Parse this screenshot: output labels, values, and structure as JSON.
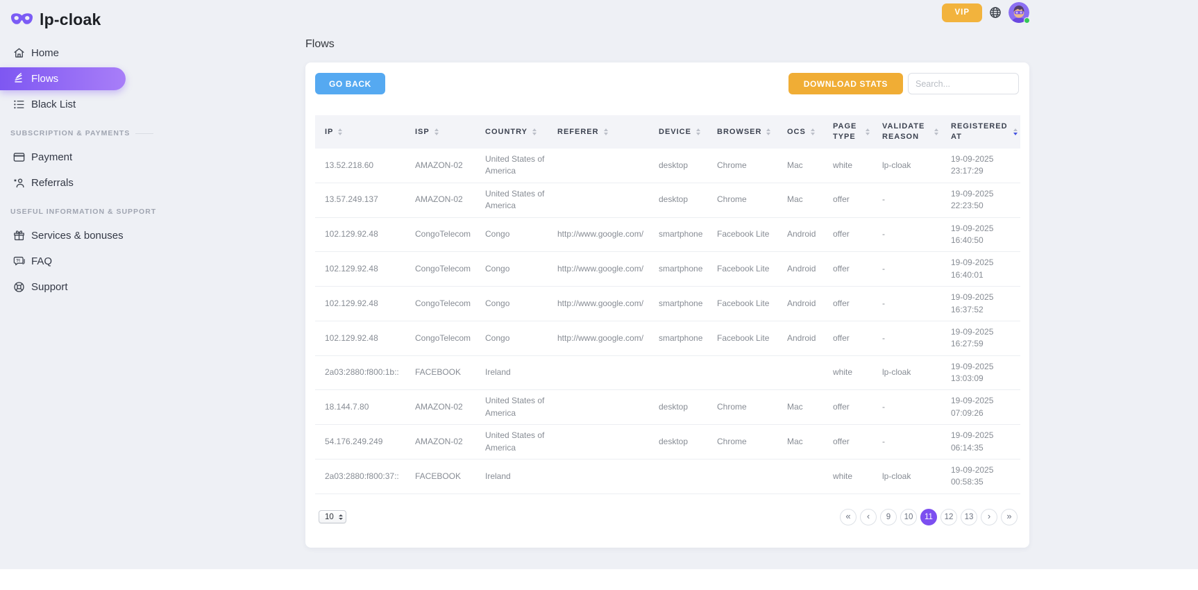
{
  "brand": {
    "name": "lp-cloak"
  },
  "topbar": {
    "vip_label": "VIP"
  },
  "sidebar": {
    "nav": [
      {
        "label": "Home",
        "active": false
      },
      {
        "label": "Flows",
        "active": true
      },
      {
        "label": "Black List",
        "active": false
      }
    ],
    "sections": [
      {
        "title": "SUBSCRIPTION & PAYMENTS",
        "items": [
          {
            "label": "Payment"
          },
          {
            "label": "Referrals"
          }
        ]
      },
      {
        "title": "USEFUL INFORMATION & SUPPORT",
        "items": [
          {
            "label": "Services & bonuses"
          },
          {
            "label": "FAQ"
          },
          {
            "label": "Support"
          }
        ]
      }
    ]
  },
  "page": {
    "title": "Flows"
  },
  "toolbar": {
    "go_back_label": "GO BACK",
    "download_stats_label": "DOWNLOAD STATS",
    "search_placeholder": "Search..."
  },
  "table": {
    "columns": [
      {
        "key": "ip",
        "label": "IP"
      },
      {
        "key": "isp",
        "label": "ISP"
      },
      {
        "key": "country",
        "label": "COUNTRY"
      },
      {
        "key": "referer",
        "label": "REFERER"
      },
      {
        "key": "device",
        "label": "DEVICE"
      },
      {
        "key": "browser",
        "label": "BROWSER"
      },
      {
        "key": "ocs",
        "label": "OCS"
      },
      {
        "key": "page_type",
        "label": "PAGE TYPE"
      },
      {
        "key": "validate_reason",
        "label": "VALIDATE REASON"
      },
      {
        "key": "registered_at",
        "label": "REGISTERED AT"
      }
    ],
    "sorted_column_index": 9,
    "rows": [
      [
        "13.52.218.60",
        "AMAZON-02",
        "United States of America",
        "",
        "desktop",
        "Chrome",
        "Mac",
        "white",
        "lp-cloak",
        "19-09-2025 23:17:29"
      ],
      [
        "13.57.249.137",
        "AMAZON-02",
        "United States of America",
        "",
        "desktop",
        "Chrome",
        "Mac",
        "offer",
        "-",
        "19-09-2025 22:23:50"
      ],
      [
        "102.129.92.48",
        "CongoTelecom",
        "Congo",
        "http://www.google.com/",
        "smartphone",
        "Facebook Lite",
        "Android",
        "offer",
        "-",
        "19-09-2025 16:40:50"
      ],
      [
        "102.129.92.48",
        "CongoTelecom",
        "Congo",
        "http://www.google.com/",
        "smartphone",
        "Facebook Lite",
        "Android",
        "offer",
        "-",
        "19-09-2025 16:40:01"
      ],
      [
        "102.129.92.48",
        "CongoTelecom",
        "Congo",
        "http://www.google.com/",
        "smartphone",
        "Facebook Lite",
        "Android",
        "offer",
        "-",
        "19-09-2025 16:37:52"
      ],
      [
        "102.129.92.48",
        "CongoTelecom",
        "Congo",
        "http://www.google.com/",
        "smartphone",
        "Facebook Lite",
        "Android",
        "offer",
        "-",
        "19-09-2025 16:27:59"
      ],
      [
        "2a03:2880:f800:1b::",
        "FACEBOOK",
        "Ireland",
        "",
        "",
        "",
        "",
        "white",
        "lp-cloak",
        "19-09-2025 13:03:09"
      ],
      [
        "18.144.7.80",
        "AMAZON-02",
        "United States of America",
        "",
        "desktop",
        "Chrome",
        "Mac",
        "offer",
        "-",
        "19-09-2025 07:09:26"
      ],
      [
        "54.176.249.249",
        "AMAZON-02",
        "United States of America",
        "",
        "desktop",
        "Chrome",
        "Mac",
        "offer",
        "-",
        "19-09-2025 06:14:35"
      ],
      [
        "2a03:2880:f800:37::",
        "FACEBOOK",
        "Ireland",
        "",
        "",
        "",
        "",
        "white",
        "lp-cloak",
        "19-09-2025 00:58:35"
      ]
    ]
  },
  "pagination": {
    "page_size": "10",
    "first_label": "«",
    "prev_label": "‹",
    "next_label": "›",
    "last_label": "»",
    "pages": [
      "9",
      "10",
      "11",
      "12",
      "13"
    ],
    "active_page": "11"
  },
  "colors": {
    "background": "#eef0f5",
    "sidebar_active_gradient_start": "#7e57f2",
    "sidebar_active_gradient_end": "#a87ef8",
    "vip_button": "#f2b33d",
    "go_back_button": "#55a9f1",
    "download_button": "#f0ad35",
    "active_page": "#7c4ff0",
    "online_dot": "#35c759",
    "sort_active_arrow": "#4554e0",
    "table_header_bg": "#f3f4f8"
  }
}
